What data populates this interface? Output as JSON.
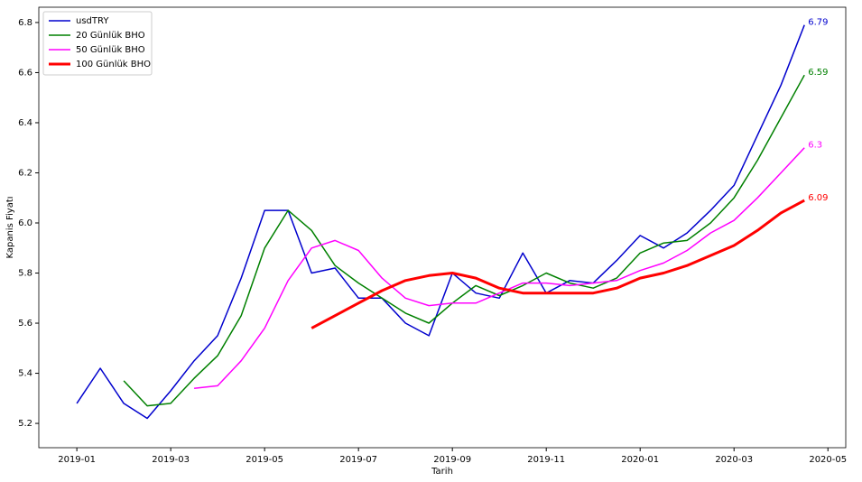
{
  "chart_data": {
    "type": "line",
    "xlabel": "Tarih",
    "ylabel": "Kapanis Fiyatı",
    "x": [
      0,
      0.5,
      1,
      1.5,
      2,
      2.5,
      3,
      3.5,
      4,
      4.5,
      5,
      5.5,
      6,
      6.5,
      7,
      7.5,
      8,
      8.5,
      9,
      9.5,
      10,
      10.5,
      11,
      11.5,
      12,
      12.5,
      13,
      13.5,
      14,
      14.5,
      15,
      15.5
    ],
    "series": [
      {
        "name": "usdTRY",
        "color": "#0000cd",
        "width": 1.5,
        "values": [
          5.28,
          5.42,
          5.28,
          5.22,
          5.33,
          5.45,
          5.55,
          5.78,
          6.05,
          6.05,
          5.8,
          5.82,
          5.7,
          5.7,
          5.6,
          5.55,
          5.8,
          5.72,
          5.7,
          5.88,
          5.72,
          5.77,
          5.76,
          5.85,
          5.95,
          5.9,
          5.96,
          6.05,
          6.15,
          6.35,
          6.55,
          6.79
        ]
      },
      {
        "name": "20 Günlük BHO",
        "color": "#008000",
        "width": 1.5,
        "values": [
          null,
          null,
          5.37,
          5.27,
          5.28,
          5.38,
          5.47,
          5.63,
          5.9,
          6.05,
          5.97,
          5.83,
          5.76,
          5.7,
          5.64,
          5.6,
          5.68,
          5.75,
          5.71,
          5.75,
          5.8,
          5.76,
          5.74,
          5.78,
          5.88,
          5.92,
          5.93,
          6,
          6.1,
          6.25,
          6.42,
          6.59
        ]
      },
      {
        "name": "50 Günlük BHO",
        "color": "#ff00ff",
        "width": 1.5,
        "values": [
          null,
          null,
          null,
          null,
          null,
          5.34,
          5.35,
          5.45,
          5.58,
          5.77,
          5.9,
          5.93,
          5.89,
          5.78,
          5.7,
          5.67,
          5.68,
          5.68,
          5.72,
          5.76,
          5.76,
          5.75,
          5.76,
          5.77,
          5.81,
          5.84,
          5.89,
          5.96,
          6.01,
          6.1,
          6.2,
          6.3
        ]
      },
      {
        "name": "100 Günlük BHO",
        "color": "#ff0000",
        "width": 3,
        "values": [
          null,
          null,
          null,
          null,
          null,
          null,
          null,
          null,
          null,
          null,
          5.58,
          5.63,
          5.68,
          5.73,
          5.77,
          5.79,
          5.8,
          5.78,
          5.74,
          5.72,
          5.72,
          5.72,
          5.72,
          5.74,
          5.78,
          5.8,
          5.83,
          5.87,
          5.91,
          5.97,
          6.04,
          6.09
        ]
      }
    ],
    "xlim": [
      -0.81,
      16.38
    ],
    "xticks": [
      {
        "value": 0,
        "label": "2019-01"
      },
      {
        "value": 2,
        "label": "2019-03"
      },
      {
        "value": 4,
        "label": "2019-05"
      },
      {
        "value": 6,
        "label": "2019-07"
      },
      {
        "value": 8,
        "label": "2019-09"
      },
      {
        "value": 10,
        "label": "2019-11"
      },
      {
        "value": 12,
        "label": "2020-01"
      },
      {
        "value": 14,
        "label": "2020-03"
      },
      {
        "value": 16,
        "label": "2020-05"
      }
    ],
    "ylim": [
      5.103,
      6.861
    ],
    "yticks": [
      5.2,
      5.4,
      5.6,
      5.8,
      {
        "value": 6,
        "label": "6.0"
      },
      6.2,
      6.4,
      6.6,
      6.8
    ],
    "legend": "upper-left"
  }
}
